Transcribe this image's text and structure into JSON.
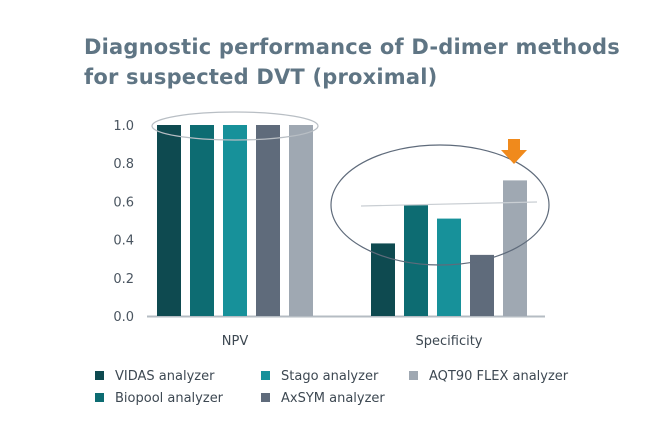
{
  "chart_data": {
    "type": "bar",
    "title": "Diagnostic performance of D-dimer methods for suspected DVT (proximal)",
    "title_lines": [
      "Diagnostic performance of D-dimer methods",
      "for suspected DVT (proximal)"
    ],
    "categories": [
      "NPV",
      "Specificity"
    ],
    "series": [
      {
        "name": "VIDAS analyzer",
        "color": "#0e4a50",
        "values": [
          1.0,
          0.38
        ]
      },
      {
        "name": "Biopool analyzer",
        "color": "#0d6c72",
        "values": [
          1.0,
          0.58
        ]
      },
      {
        "name": "Stago analyzer",
        "color": "#17919a",
        "values": [
          1.0,
          0.51
        ]
      },
      {
        "name": "AxSYM analyzer",
        "color": "#5f6b7b",
        "values": [
          1.0,
          0.32
        ]
      },
      {
        "name": "AQT90 FLEX analyzer",
        "color": "#9fa8b2",
        "values": [
          1.0,
          0.71
        ]
      }
    ],
    "ylim": [
      0,
      1.0
    ],
    "yticks": [
      "0.0",
      "0.2",
      "0.4",
      "0.6",
      "0.8",
      "1.0"
    ],
    "grid": false,
    "legend": "bottom",
    "annotations": {
      "highlight_arrow_color": "#f08a1c",
      "highlight_series": "AQT90 FLEX analyzer"
    }
  }
}
